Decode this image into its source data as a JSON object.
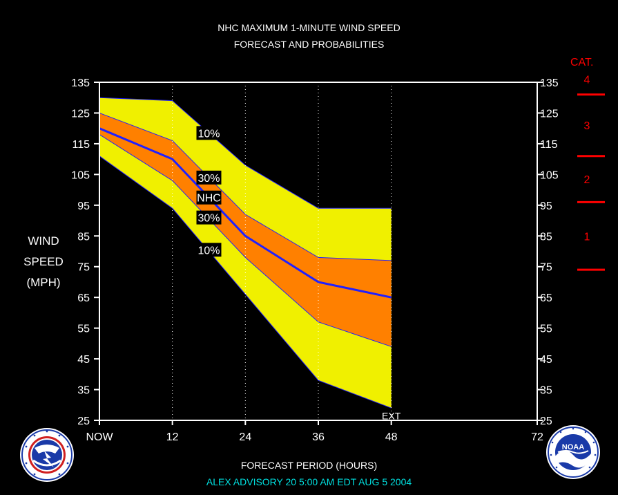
{
  "chart_data": {
    "type": "area",
    "title": "NHC MAXIMUM 1-MINUTE WIND SPEED",
    "subtitle": "FORECAST AND PROBABILITIES",
    "ylabel_lines": [
      "WIND",
      "SPEED",
      "(MPH)"
    ],
    "xlabel": "FORECAST PERIOD (HOURS)",
    "xlim": [
      0,
      72
    ],
    "ylim": [
      25,
      135
    ],
    "x_ticks": [
      {
        "x": 0,
        "label": "NOW"
      },
      {
        "x": 12,
        "label": "12"
      },
      {
        "x": 24,
        "label": "24"
      },
      {
        "x": 36,
        "label": "36"
      },
      {
        "x": 48,
        "label": "48"
      },
      {
        "x": 72,
        "label": "72"
      }
    ],
    "y_ticks": [
      25,
      35,
      45,
      55,
      65,
      75,
      85,
      95,
      105,
      115,
      125,
      135
    ],
    "dotted_gridlines_x": [
      12,
      24,
      36,
      48
    ],
    "x": [
      0,
      12,
      24,
      36,
      48
    ],
    "series": [
      {
        "name": "NHC",
        "values": [
          120,
          110,
          85,
          70,
          65
        ],
        "color": "#2020ff"
      }
    ],
    "bands": [
      {
        "label": "10%",
        "color": "#f0f000",
        "upper": [
          130,
          129,
          108,
          94,
          94
        ],
        "lower": [
          111,
          94,
          66,
          38,
          29
        ]
      },
      {
        "label": "30%",
        "color": "#ff8000",
        "upper": [
          125,
          116,
          92,
          78,
          77
        ],
        "lower": [
          118,
          103,
          78,
          57,
          49
        ]
      }
    ],
    "band_labels": [
      {
        "text": "10%",
        "x": 18,
        "y": 118.5
      },
      {
        "text": "30%",
        "x": 18,
        "y": 104
      },
      {
        "text": "NHC",
        "x": 18,
        "y": 97.5
      },
      {
        "text": "30%",
        "x": 18,
        "y": 91
      },
      {
        "text": "10%",
        "x": 18,
        "y": 80.5
      }
    ],
    "ext_label": {
      "text": "EXT",
      "x": 48,
      "y": 26.5
    },
    "categories_scale": {
      "title": "CAT.",
      "color": "#ff0000",
      "thresholds": [
        74,
        96,
        111,
        131
      ],
      "labels": [
        {
          "text": "1",
          "y": 85
        },
        {
          "text": "2",
          "y": 103.5
        },
        {
          "text": "3",
          "y": 121
        },
        {
          "text": "4",
          "y": 136
        }
      ]
    }
  },
  "advisory": "ALEX   ADVISORY  20 5:00 AM  EDT  AUG 5 2004",
  "logos": {
    "left": {
      "name": "nws-logo",
      "text": "NATIONAL WEATHER SERVICE"
    },
    "right": {
      "name": "noaa-logo",
      "text": "NOAA"
    }
  }
}
